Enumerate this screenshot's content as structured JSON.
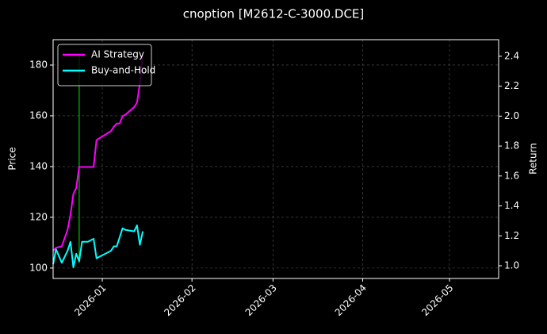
{
  "chart_data": {
    "type": "line",
    "title": "cnoption [M2612-C-3000.DCE]",
    "y_label": "Price",
    "y2_label": "Return",
    "x": [
      "2025-12-15",
      "2025-12-16",
      "2025-12-18",
      "2025-12-20",
      "2025-12-21",
      "2025-12-22",
      "2025-12-23",
      "2025-12-24",
      "2025-12-25",
      "2025-12-27",
      "2025-12-29",
      "2025-12-30",
      "2026-01-04",
      "2026-01-05",
      "2026-01-06",
      "2026-01-07",
      "2026-01-08",
      "2026-01-09",
      "2026-01-12",
      "2026-01-13",
      "2026-01-14",
      "2026-01-15"
    ],
    "series": [
      {
        "name": "AI Strategy",
        "color": "#ff00ff",
        "axis": "y2",
        "values": [
          1.1,
          1.12,
          1.13,
          1.24,
          1.34,
          1.48,
          1.52,
          1.66,
          1.66,
          1.66,
          1.66,
          1.84,
          1.9,
          1.93,
          1.95,
          1.95,
          2.0,
          2.01,
          2.06,
          2.09,
          2.22,
          2.41
        ]
      },
      {
        "name": "Buy-and-Hold",
        "color": "#00ffff",
        "axis": "y2",
        "values": [
          1.01,
          1.11,
          1.02,
          1.1,
          1.16,
          0.99,
          1.08,
          1.03,
          1.16,
          1.16,
          1.18,
          1.05,
          1.1,
          1.13,
          1.13,
          1.19,
          1.25,
          1.24,
          1.23,
          1.27,
          1.14,
          1.23
        ]
      }
    ],
    "price_series": {
      "color": "#00c000",
      "x": [
        "2025-12-24",
        "2025-12-24"
      ],
      "values": [
        102,
        184
      ]
    },
    "xlim": [
      "2025-12-15",
      "2026-05-18"
    ],
    "xticks": [
      "2026-01",
      "2026-02",
      "2026-03",
      "2026-04",
      "2026-05"
    ],
    "ylim": [
      95.9,
      190
    ],
    "yticks": [
      100,
      120,
      140,
      160,
      180
    ],
    "y2lim": [
      0.915,
      2.511
    ],
    "y2ticks": [
      {
        "value": 1.0,
        "label": "1.0"
      },
      {
        "value": 1.2,
        "label": "1.2"
      },
      {
        "value": 1.4,
        "label": "1.4"
      },
      {
        "value": 1.6,
        "label": "1.6"
      },
      {
        "value": 1.8,
        "label": "1.8"
      },
      {
        "value": 2.0,
        "label": "2.0"
      },
      {
        "value": 2.2,
        "label": "2.2"
      },
      {
        "value": 2.4,
        "label": "2.4"
      }
    ],
    "grid": true,
    "legend": "upper-left"
  }
}
